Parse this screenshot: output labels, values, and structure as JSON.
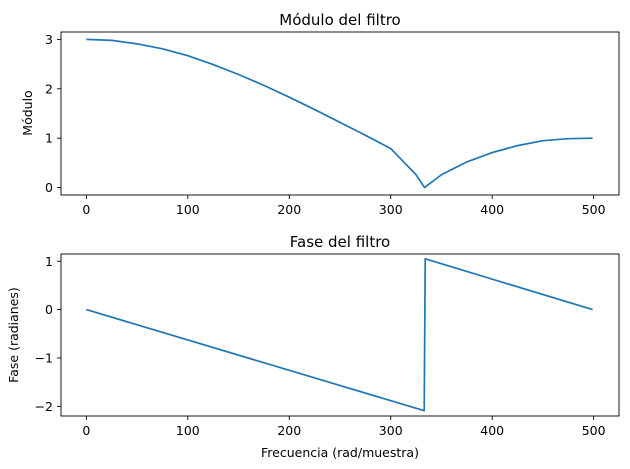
{
  "chart_data": [
    {
      "type": "line",
      "title": "Módulo del filtro",
      "xlabel": "",
      "ylabel": "Módulo",
      "xlim": [
        -25,
        525
      ],
      "ylim": [
        -0.15,
        3.15
      ],
      "xticks": [
        0,
        100,
        200,
        300,
        400,
        500
      ],
      "yticks": [
        0,
        1,
        2,
        3
      ],
      "xtick_labels": [
        "0",
        "100",
        "200",
        "300",
        "400",
        "500"
      ],
      "ytick_labels": [
        "0",
        "1",
        "2",
        "3"
      ],
      "grid": false,
      "color": "#1f77b4",
      "series": [
        {
          "x": [
            0,
            25,
            50,
            75,
            100,
            125,
            150,
            175,
            200,
            225,
            250,
            275,
            300,
            325,
            333.3,
            350,
            375,
            400,
            425,
            450,
            475,
            499
          ],
          "values": [
            3.0,
            2.98,
            2.91,
            2.81,
            2.67,
            2.49,
            2.29,
            2.07,
            1.83,
            1.58,
            1.32,
            1.06,
            0.79,
            0.26,
            0.0,
            0.26,
            0.52,
            0.71,
            0.85,
            0.95,
            0.99,
            1.0
          ]
        }
      ]
    },
    {
      "type": "line",
      "title": "Fase del filtro",
      "xlabel": "Frecuencia (rad/muestra)",
      "ylabel": "Fase (radianes)",
      "xlim": [
        -25,
        525
      ],
      "ylim": [
        -2.2,
        1.15
      ],
      "xticks": [
        0,
        100,
        200,
        300,
        400,
        500
      ],
      "yticks": [
        -2,
        -1,
        0,
        1
      ],
      "xtick_labels": [
        "0",
        "100",
        "200",
        "300",
        "400",
        "500"
      ],
      "ytick_labels": [
        "−2",
        "−1",
        "0",
        "1"
      ],
      "grid": false,
      "color": "#1f77b4",
      "series": [
        {
          "x": [
            0,
            333,
            334,
            499
          ],
          "values": [
            0.0,
            -2.09,
            1.05,
            0.0
          ]
        }
      ]
    }
  ]
}
